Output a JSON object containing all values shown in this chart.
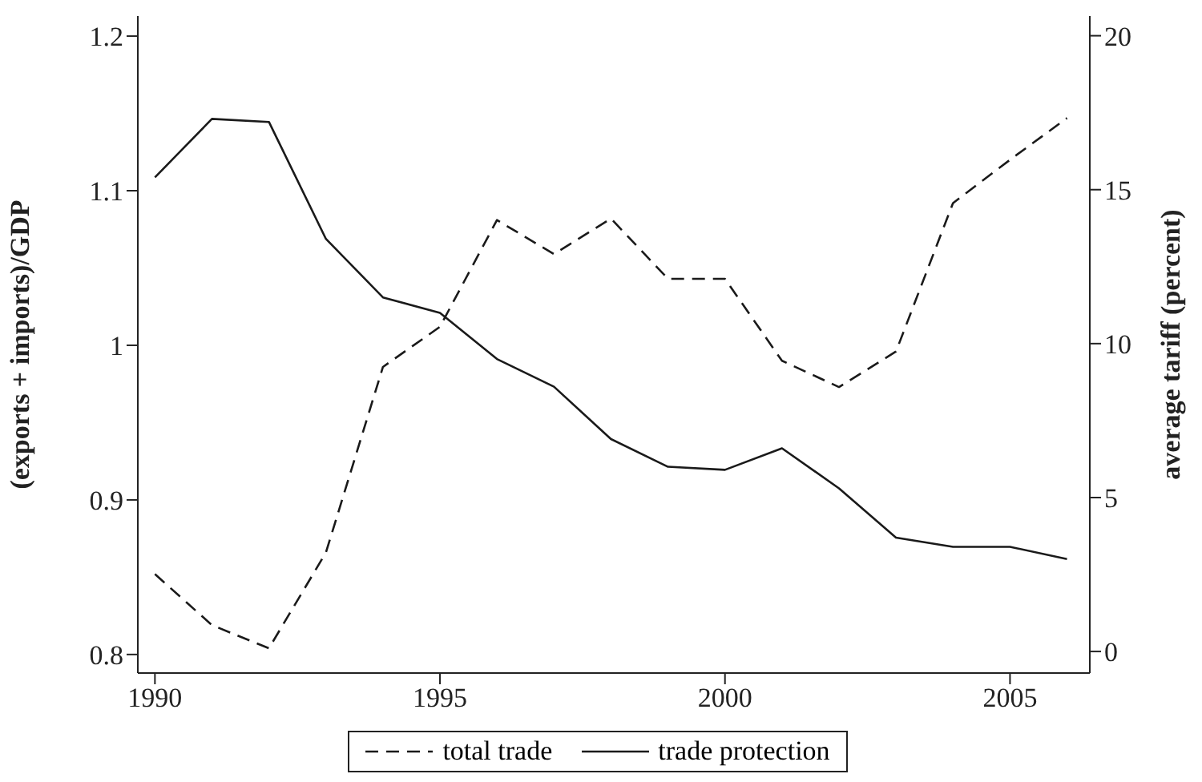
{
  "chart_data": {
    "type": "line",
    "ylabel": "(exports + imports)/GDP",
    "y2label": "average tariff (percent)",
    "x": [
      1990,
      1991,
      1992,
      1993,
      1994,
      1995,
      1996,
      1997,
      1998,
      1999,
      2000,
      2001,
      2002,
      2003,
      2004,
      2005,
      2006
    ],
    "series": [
      {
        "name": "total trade",
        "color": "#1a1a1a",
        "line_style": "dashed",
        "values": [
          0.852,
          0.819,
          0.804,
          0.866,
          0.986,
          1.012,
          1.081,
          1.059,
          1.082,
          1.043,
          1.043,
          0.99,
          0.973,
          0.996,
          1.092,
          1.12,
          1.147
        ]
      },
      {
        "name": "trade protection",
        "color": "#1a1a1a",
        "line_style": "solid",
        "axis": "y2",
        "values": [
          15.4,
          17.3,
          17.2,
          13.4,
          11.5,
          11.0,
          9.5,
          8.6,
          6.9,
          6.0,
          5.9,
          6.6,
          5.3,
          3.7,
          3.4,
          3.4,
          3.0
        ]
      }
    ],
    "xlim": [
      1989.7,
      2006.4
    ],
    "xticks": [
      1990,
      1995,
      2000,
      2005
    ],
    "ylim": [
      0.788,
      1.213
    ],
    "yticks": [
      {
        "value": 0.8,
        "label": "0.8"
      },
      {
        "value": 0.9,
        "label": "0.9"
      },
      1,
      {
        "value": 1.1,
        "label": "1.1"
      },
      {
        "value": 1.2,
        "label": "1.2"
      }
    ],
    "y2lim": [
      -0.7,
      20.64
    ],
    "y2ticks": [
      0,
      5,
      10,
      15,
      20
    ],
    "grid": false,
    "legend": "bottom",
    "marker": "none"
  }
}
